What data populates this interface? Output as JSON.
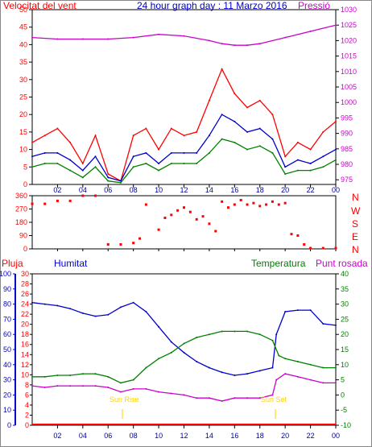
{
  "colors": {
    "red": "#ff0000",
    "blue": "#0000cc",
    "green": "#008000",
    "magenta": "#cc00cc",
    "navy": "#000099",
    "grid": "#000000",
    "sun": "#ffd200"
  },
  "charts": {
    "top": {
      "left_title": "Velocitat del vent",
      "center_title": "24 hour graph day : 11 Marzo 2016",
      "right_title": "Pressió"
    },
    "mid": {
      "dir_labels": [
        "N",
        "W",
        "S",
        "E",
        "N"
      ]
    },
    "bottom": {
      "label_pluja": "Pluja",
      "label_humitat": "Humitat",
      "label_temperatura": "Temperatura",
      "label_punt_rosada": "Punt rosada",
      "sun_rise": "Sun Rise",
      "sun_set": "Sun Set"
    }
  },
  "chart_data": [
    {
      "type": "line",
      "id": "wind-pressure",
      "x_tick_labels": [
        "02",
        "04",
        "06",
        "08",
        "10",
        "12",
        "14",
        "16",
        "18",
        "20",
        "22",
        "00"
      ],
      "y_left_ticks": [
        0,
        5,
        10,
        15,
        20,
        25,
        30,
        35,
        40,
        45,
        50
      ],
      "y_left_range": [
        0,
        50
      ],
      "y_right_ticks": [
        975,
        980,
        985,
        990,
        995,
        1000,
        1005,
        1010,
        1015,
        1020,
        1025,
        1030
      ],
      "y_right_range": [
        973.5,
        1030
      ],
      "series": [
        {
          "key": "gust",
          "color": "#ff0000",
          "axis": "left",
          "points": [
            [
              0,
              12
            ],
            [
              1,
              14
            ],
            [
              2,
              16
            ],
            [
              3,
              12
            ],
            [
              4,
              6
            ],
            [
              5,
              14
            ],
            [
              6,
              3
            ],
            [
              7,
              1
            ],
            [
              8,
              14
            ],
            [
              9,
              16
            ],
            [
              10,
              10
            ],
            [
              11,
              16
            ],
            [
              12,
              14
            ],
            [
              13,
              15
            ],
            [
              14,
              24
            ],
            [
              15,
              33
            ],
            [
              16,
              26
            ],
            [
              17,
              22
            ],
            [
              18,
              24
            ],
            [
              19,
              20
            ],
            [
              20,
              8
            ],
            [
              21,
              12
            ],
            [
              22,
              10
            ],
            [
              23,
              15
            ],
            [
              24,
              18
            ]
          ]
        },
        {
          "key": "avg",
          "color": "#0000cc",
          "axis": "left",
          "points": [
            [
              0,
              8
            ],
            [
              1,
              9
            ],
            [
              2,
              9
            ],
            [
              3,
              7
            ],
            [
              4,
              4
            ],
            [
              5,
              8
            ],
            [
              6,
              2
            ],
            [
              7,
              1
            ],
            [
              8,
              8
            ],
            [
              9,
              9
            ],
            [
              10,
              6
            ],
            [
              11,
              9
            ],
            [
              12,
              9
            ],
            [
              13,
              9
            ],
            [
              14,
              14
            ],
            [
              15,
              20
            ],
            [
              16,
              18
            ],
            [
              17,
              15
            ],
            [
              18,
              16
            ],
            [
              19,
              13
            ],
            [
              20,
              5
            ],
            [
              21,
              7
            ],
            [
              22,
              6
            ],
            [
              23,
              8
            ],
            [
              24,
              10
            ]
          ]
        },
        {
          "key": "low",
          "color": "#008000",
          "axis": "left",
          "points": [
            [
              0,
              5
            ],
            [
              1,
              6
            ],
            [
              2,
              6
            ],
            [
              3,
              4
            ],
            [
              4,
              2
            ],
            [
              5,
              5
            ],
            [
              6,
              1
            ],
            [
              7,
              0.5
            ],
            [
              8,
              5
            ],
            [
              9,
              6
            ],
            [
              10,
              4
            ],
            [
              11,
              6
            ],
            [
              12,
              6
            ],
            [
              13,
              6
            ],
            [
              14,
              9
            ],
            [
              15,
              13
            ],
            [
              16,
              12
            ],
            [
              17,
              10
            ],
            [
              18,
              11
            ],
            [
              19,
              9
            ],
            [
              20,
              3
            ],
            [
              21,
              4
            ],
            [
              22,
              4
            ],
            [
              23,
              5
            ],
            [
              24,
              7
            ]
          ]
        },
        {
          "key": "pressure",
          "color": "#cc00cc",
          "axis": "right",
          "points": [
            [
              0,
              1021
            ],
            [
              2,
              1020.5
            ],
            [
              4,
              1020.5
            ],
            [
              6,
              1020.5
            ],
            [
              8,
              1021
            ],
            [
              10,
              1022
            ],
            [
              12,
              1021.5
            ],
            [
              14,
              1020
            ],
            [
              15,
              1019
            ],
            [
              16,
              1018.5
            ],
            [
              17,
              1018.5
            ],
            [
              18,
              1019
            ],
            [
              20,
              1021
            ],
            [
              22,
              1023
            ],
            [
              24,
              1025
            ]
          ]
        }
      ]
    },
    {
      "type": "scatter",
      "id": "wind-direction",
      "y_ticks": [
        0,
        90,
        180,
        270,
        360
      ],
      "y_range": [
        0,
        360
      ],
      "series": [
        {
          "key": "direction",
          "color": "#ff0000",
          "points": [
            [
              0,
              305
            ],
            [
              1,
              305
            ],
            [
              2,
              325
            ],
            [
              3,
              325
            ],
            [
              4,
              360
            ],
            [
              5,
              360
            ],
            [
              6,
              30
            ],
            [
              7,
              30
            ],
            [
              8,
              40
            ],
            [
              8.5,
              70
            ],
            [
              9,
              300
            ],
            [
              10,
              130
            ],
            [
              10.5,
              210
            ],
            [
              11,
              230
            ],
            [
              11.5,
              260
            ],
            [
              12,
              280
            ],
            [
              12.5,
              250
            ],
            [
              13,
              200
            ],
            [
              13.5,
              220
            ],
            [
              14,
              170
            ],
            [
              14.5,
              120
            ],
            [
              15,
              320
            ],
            [
              15.5,
              280
            ],
            [
              16,
              300
            ],
            [
              16.5,
              330
            ],
            [
              17,
              300
            ],
            [
              17.5,
              310
            ],
            [
              18,
              290
            ],
            [
              18.5,
              300
            ],
            [
              19,
              320
            ],
            [
              19.5,
              300
            ],
            [
              20,
              310
            ],
            [
              20.5,
              100
            ],
            [
              21,
              90
            ],
            [
              21.5,
              30
            ],
            [
              22,
              5
            ],
            [
              23,
              5
            ],
            [
              24,
              5
            ]
          ]
        }
      ]
    },
    {
      "type": "line",
      "id": "humidity-temperature",
      "y_left_outer_ticks": [
        0,
        10,
        20,
        30,
        40,
        50,
        60,
        70,
        80,
        90,
        100
      ],
      "y_left_outer_range": [
        0,
        100
      ],
      "y_left_inner_ticks": [
        0,
        2,
        4,
        6,
        8,
        10,
        12,
        14,
        16,
        18,
        20,
        22,
        24,
        26,
        28,
        30
      ],
      "y_left_inner_range": [
        0,
        30
      ],
      "y_right_ticks": [
        -10,
        -5,
        0,
        5,
        10,
        15,
        20,
        25,
        30,
        35,
        40
      ],
      "y_right_range": [
        -10,
        40
      ],
      "series": [
        {
          "key": "humidity",
          "color": "#0000cc",
          "axis": "outer",
          "points": [
            [
              0,
              81
            ],
            [
              1,
              80
            ],
            [
              2,
              79
            ],
            [
              3,
              77
            ],
            [
              4,
              74
            ],
            [
              5,
              72
            ],
            [
              6,
              73
            ],
            [
              7,
              78
            ],
            [
              8,
              81
            ],
            [
              9,
              75
            ],
            [
              10,
              65
            ],
            [
              11,
              55
            ],
            [
              12,
              48
            ],
            [
              13,
              42
            ],
            [
              14,
              38
            ],
            [
              15,
              35
            ],
            [
              16,
              33
            ],
            [
              17,
              34
            ],
            [
              18,
              36
            ],
            [
              19,
              38
            ],
            [
              19.3,
              60
            ],
            [
              20,
              75
            ],
            [
              21,
              76
            ],
            [
              22,
              76
            ],
            [
              23,
              67
            ],
            [
              24,
              66
            ]
          ]
        },
        {
          "key": "temperature",
          "color": "#008000",
          "axis": "right",
          "points": [
            [
              0,
              6
            ],
            [
              1,
              6
            ],
            [
              2,
              6.5
            ],
            [
              3,
              6.5
            ],
            [
              4,
              7
            ],
            [
              5,
              7
            ],
            [
              6,
              6
            ],
            [
              7,
              4
            ],
            [
              8,
              5
            ],
            [
              9,
              9
            ],
            [
              10,
              12
            ],
            [
              11,
              14
            ],
            [
              12,
              17
            ],
            [
              13,
              19
            ],
            [
              14,
              20
            ],
            [
              15,
              21
            ],
            [
              16,
              21
            ],
            [
              17,
              21
            ],
            [
              18,
              20
            ],
            [
              19,
              18
            ],
            [
              19.5,
              13
            ],
            [
              20,
              12
            ],
            [
              21,
              11
            ],
            [
              22,
              10
            ],
            [
              23,
              9
            ],
            [
              24,
              9
            ]
          ]
        },
        {
          "key": "dew_point",
          "color": "#cc00cc",
          "axis": "right",
          "points": [
            [
              0,
              3
            ],
            [
              1,
              2.5
            ],
            [
              2,
              3
            ],
            [
              3,
              3
            ],
            [
              4,
              3
            ],
            [
              5,
              3
            ],
            [
              6,
              2.5
            ],
            [
              7,
              1
            ],
            [
              8,
              2
            ],
            [
              9,
              2
            ],
            [
              10,
              1
            ],
            [
              11,
              0.5
            ],
            [
              12,
              0
            ],
            [
              13,
              -1
            ],
            [
              14,
              -1
            ],
            [
              15,
              -2
            ],
            [
              16,
              -1
            ],
            [
              17,
              -1
            ],
            [
              18,
              -1
            ],
            [
              19,
              0
            ],
            [
              19.3,
              5
            ],
            [
              20,
              7
            ],
            [
              21,
              6
            ],
            [
              22,
              5
            ],
            [
              23,
              4
            ],
            [
              24,
              4
            ]
          ]
        }
      ]
    }
  ]
}
